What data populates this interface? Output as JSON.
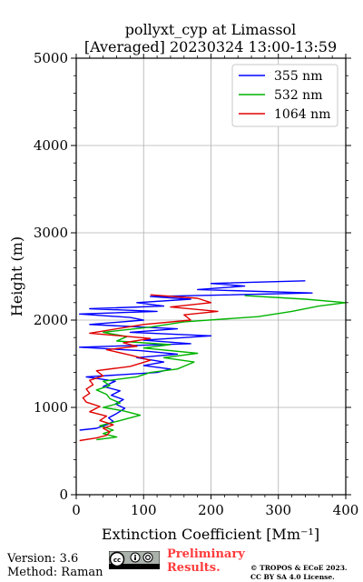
{
  "chart_data": {
    "type": "line",
    "title": "pollyxt_cyp at Limassol",
    "subtitle": "[Averaged] 20230324 13:00-13:59",
    "xlabel": "Extinction Coefficient [Mm⁻¹]",
    "ylabel": "Height (m)",
    "xlim": [
      0,
      400
    ],
    "ylim": [
      0,
      5000
    ],
    "xticks": [
      "0",
      "100",
      "200",
      "300",
      "400"
    ],
    "yticks": [
      "0",
      "1000",
      "2000",
      "3000",
      "4000",
      "5000"
    ],
    "xtick_values": [
      0,
      100,
      200,
      300,
      400
    ],
    "ytick_values": [
      0,
      1000,
      2000,
      3000,
      4000,
      5000
    ],
    "grid": true,
    "legend_position": "top-right",
    "series": [
      {
        "name": "355 nm",
        "color": "#0000ff",
        "points": [
          [
            5,
            740
          ],
          [
            30,
            760
          ],
          [
            45,
            800
          ],
          [
            55,
            840
          ],
          [
            48,
            880
          ],
          [
            60,
            930
          ],
          [
            72,
            990
          ],
          [
            58,
            1040
          ],
          [
            70,
            1090
          ],
          [
            52,
            1140
          ],
          [
            65,
            1190
          ],
          [
            40,
            1240
          ],
          [
            58,
            1300
          ],
          [
            15,
            1350
          ],
          [
            120,
            1400
          ],
          [
            140,
            1440
          ],
          [
            100,
            1480
          ],
          [
            130,
            1520
          ],
          [
            90,
            1570
          ],
          [
            150,
            1610
          ],
          [
            95,
            1650
          ],
          [
            5,
            1690
          ],
          [
            170,
            1730
          ],
          [
            100,
            1770
          ],
          [
            200,
            1820
          ],
          [
            80,
            1860
          ],
          [
            150,
            1900
          ],
          [
            20,
            1950
          ],
          [
            100,
            2000
          ],
          [
            80,
            2030
          ],
          [
            5,
            2070
          ],
          [
            120,
            2100
          ],
          [
            20,
            2130
          ],
          [
            130,
            2160
          ],
          [
            90,
            2200
          ],
          [
            170,
            2240
          ],
          [
            110,
            2270
          ],
          [
            350,
            2310
          ],
          [
            180,
            2350
          ],
          [
            250,
            2390
          ],
          [
            200,
            2420
          ],
          [
            340,
            2450
          ]
        ]
      },
      {
        "name": "532 nm",
        "color": "#00b400",
        "points": [
          [
            30,
            630
          ],
          [
            60,
            660
          ],
          [
            40,
            700
          ],
          [
            55,
            740
          ],
          [
            35,
            790
          ],
          [
            60,
            840
          ],
          [
            95,
            910
          ],
          [
            70,
            960
          ],
          [
            40,
            1000
          ],
          [
            65,
            1050
          ],
          [
            50,
            1100
          ],
          [
            45,
            1150
          ],
          [
            30,
            1200
          ],
          [
            50,
            1250
          ],
          [
            40,
            1300
          ],
          [
            90,
            1350
          ],
          [
            110,
            1400
          ],
          [
            150,
            1440
          ],
          [
            175,
            1520
          ],
          [
            130,
            1570
          ],
          [
            180,
            1620
          ],
          [
            100,
            1680
          ],
          [
            140,
            1720
          ],
          [
            60,
            1760
          ],
          [
            75,
            1810
          ],
          [
            40,
            1860
          ],
          [
            110,
            1920
          ],
          [
            160,
            1980
          ],
          [
            270,
            2040
          ],
          [
            320,
            2100
          ],
          [
            360,
            2160
          ],
          [
            400,
            2200
          ],
          [
            340,
            2240
          ],
          [
            250,
            2280
          ]
        ]
      },
      {
        "name": "1064 nm",
        "color": "#e00000",
        "points": [
          [
            5,
            620
          ],
          [
            30,
            650
          ],
          [
            45,
            680
          ],
          [
            50,
            720
          ],
          [
            40,
            760
          ],
          [
            55,
            800
          ],
          [
            35,
            850
          ],
          [
            45,
            900
          ],
          [
            20,
            950
          ],
          [
            35,
            1010
          ],
          [
            15,
            1060
          ],
          [
            10,
            1110
          ],
          [
            20,
            1160
          ],
          [
            15,
            1210
          ],
          [
            25,
            1260
          ],
          [
            20,
            1310
          ],
          [
            40,
            1360
          ],
          [
            30,
            1420
          ],
          [
            80,
            1470
          ],
          [
            110,
            1540
          ],
          [
            80,
            1600
          ],
          [
            45,
            1660
          ],
          [
            90,
            1700
          ],
          [
            70,
            1740
          ],
          [
            110,
            1790
          ],
          [
            20,
            1850
          ],
          [
            60,
            1900
          ],
          [
            100,
            1950
          ],
          [
            170,
            2000
          ],
          [
            160,
            2060
          ],
          [
            210,
            2100
          ],
          [
            140,
            2150
          ],
          [
            200,
            2200
          ],
          [
            180,
            2250
          ],
          [
            110,
            2290
          ]
        ]
      }
    ]
  },
  "footer": {
    "version": "Version: 3.6",
    "method": "Method: Raman",
    "preliminary_line1": "Preliminary",
    "preliminary_line2": "Results.",
    "copyright_line1": "© TROPOS & ECoE 2023.",
    "copyright_line2": "CC BY SA 4.0 License.",
    "license_icon": "cc-by-sa-icon"
  }
}
